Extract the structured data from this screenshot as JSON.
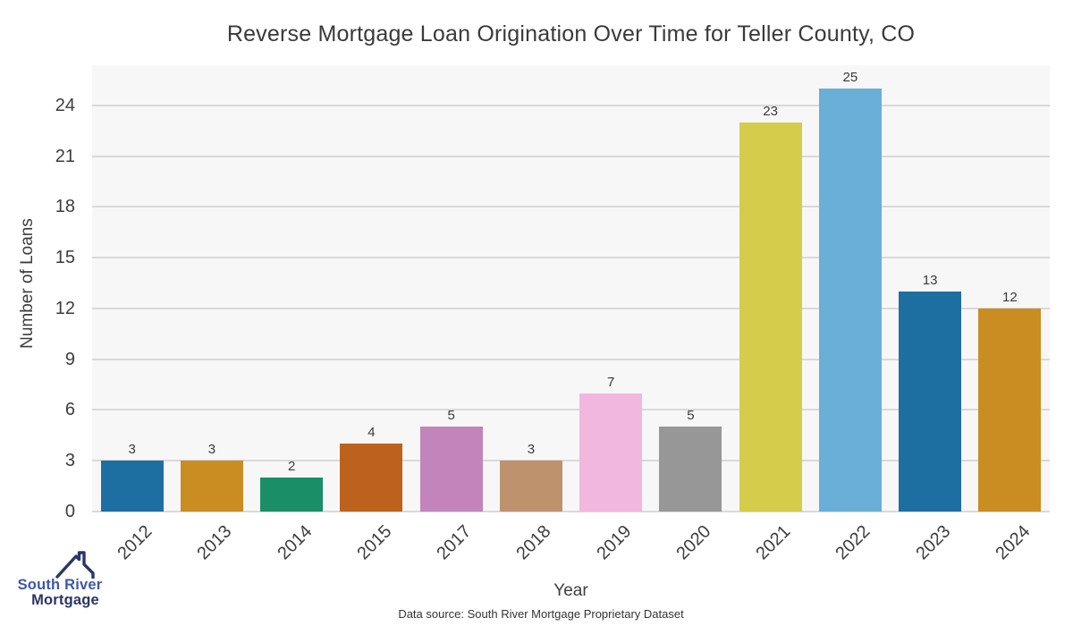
{
  "chart_data": {
    "type": "bar",
    "title": "Reverse Mortgage Loan Origination Over Time for Teller County, CO",
    "xlabel": "Year",
    "ylabel": "Number of Loans",
    "categories": [
      "2012",
      "2013",
      "2014",
      "2015",
      "2017",
      "2018",
      "2019",
      "2020",
      "2021",
      "2022",
      "2023",
      "2024"
    ],
    "values": [
      3,
      3,
      2,
      4,
      5,
      3,
      7,
      5,
      23,
      25,
      13,
      12
    ],
    "bar_colors": [
      "#1e6fa1",
      "#c98d21",
      "#198e67",
      "#bd621d",
      "#c284ba",
      "#bf926e",
      "#f2b7df",
      "#979797",
      "#d5cc4b",
      "#69afd8",
      "#1e6fa1",
      "#c98d21"
    ],
    "yticks": [
      0,
      3,
      6,
      9,
      12,
      15,
      18,
      21,
      24
    ],
    "ylim": [
      0,
      26.4
    ],
    "grid": true,
    "legend": "none",
    "value_labels_shown": true
  },
  "colors": {
    "plot_background": "#f7f7f7",
    "page_background": "#ffffff",
    "grid_color": "#d9d9d9",
    "text_color": "#3a3a3a",
    "logo_blue": "#3f57a7",
    "logo_navy": "#2b3567"
  },
  "footer": {
    "data_source": "Data source: South River Mortgage Proprietary Dataset"
  },
  "logo": {
    "line1": "South River",
    "line2": "Mortgage"
  }
}
